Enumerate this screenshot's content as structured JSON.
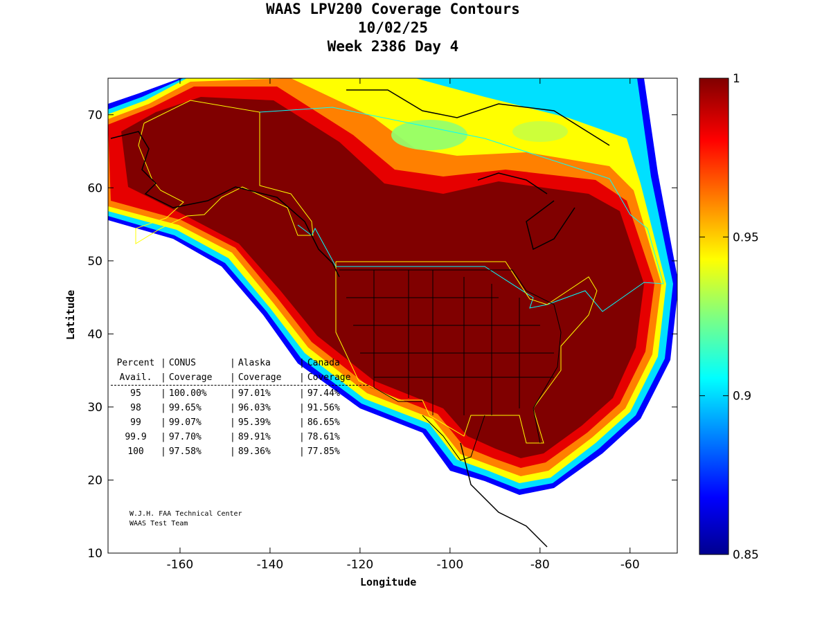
{
  "title": {
    "line1": "WAAS LPV200 Coverage Contours",
    "line2": "10/02/25",
    "line3": "Week 2386 Day 4"
  },
  "chart_data": {
    "type": "heatmap",
    "title": "WAAS LPV200 Coverage Contours 10/02/25 Week 2386 Day 4",
    "xlabel": "Longitude",
    "ylabel": "Latitude",
    "xlim": [
      -176,
      -49.5
    ],
    "ylim": [
      10,
      75
    ],
    "xticks": [
      -160,
      -140,
      -120,
      -100,
      -80,
      -60
    ],
    "yticks": [
      10,
      20,
      30,
      40,
      50,
      60,
      70
    ],
    "colorbar": {
      "min": 0.85,
      "max": 1,
      "ticks": [
        "1",
        "0.95",
        "0.9",
        "0.85"
      ],
      "tick_values": [
        1,
        0.95,
        0.9,
        0.85
      ],
      "colormap": "jet"
    },
    "description_regions": [
      "CONUS",
      "Alaska",
      "Canada"
    ]
  },
  "table": {
    "header1": [
      "Percent",
      "CONUS",
      "Alaska",
      "Canada"
    ],
    "header2": [
      "Avail.",
      "Coverage",
      "Coverage",
      "Coverage"
    ],
    "rows": [
      [
        "95",
        "100.00%",
        "97.01%",
        "97.44%"
      ],
      [
        "98",
        "99.65%",
        "96.03%",
        "91.56%"
      ],
      [
        "99",
        "99.07%",
        "95.39%",
        "86.65%"
      ],
      [
        "99.9",
        "97.70%",
        "89.91%",
        "78.61%"
      ],
      [
        "100",
        "97.58%",
        "89.36%",
        "77.85%"
      ]
    ]
  },
  "credit": {
    "line1": "W.J.H. FAA Technical Center",
    "line2": "WAAS Test Team"
  }
}
